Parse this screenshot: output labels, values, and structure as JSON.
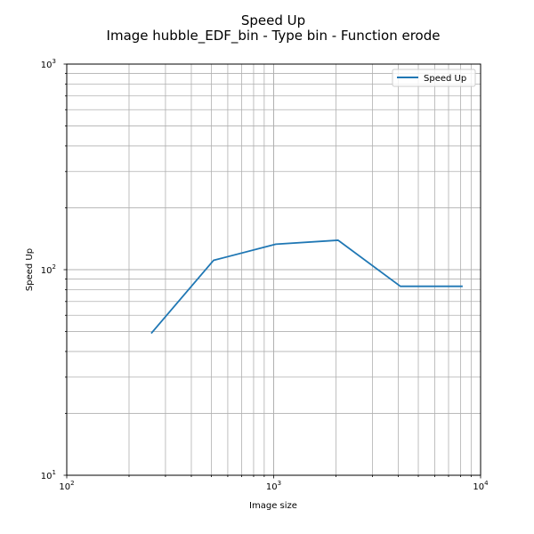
{
  "chart_data": {
    "type": "line",
    "title": "Speed Up",
    "subtitle": "Image hubble_EDF_bin - Type bin - Function erode",
    "xlabel": "Image size",
    "ylabel": "Speed Up",
    "xscale": "log",
    "yscale": "log",
    "xlim": [
      100,
      10000
    ],
    "ylim": [
      10,
      1000
    ],
    "grid": "major and minor",
    "legend_placement": "top-right",
    "x_tick_labels": [
      {
        "base": "10",
        "exp": "2"
      },
      {
        "base": "10",
        "exp": "3"
      },
      {
        "base": "10",
        "exp": "4"
      }
    ],
    "y_tick_labels": [
      {
        "base": "10",
        "exp": "1"
      },
      {
        "base": "10",
        "exp": "2"
      },
      {
        "base": "10",
        "exp": "3"
      }
    ],
    "series": [
      {
        "name": "Speed Up",
        "color": "#1f77b4",
        "x": [
          256,
          512,
          1024,
          2048,
          4096,
          8192
        ],
        "y": [
          49,
          111,
          133,
          139,
          83,
          83
        ]
      }
    ]
  }
}
